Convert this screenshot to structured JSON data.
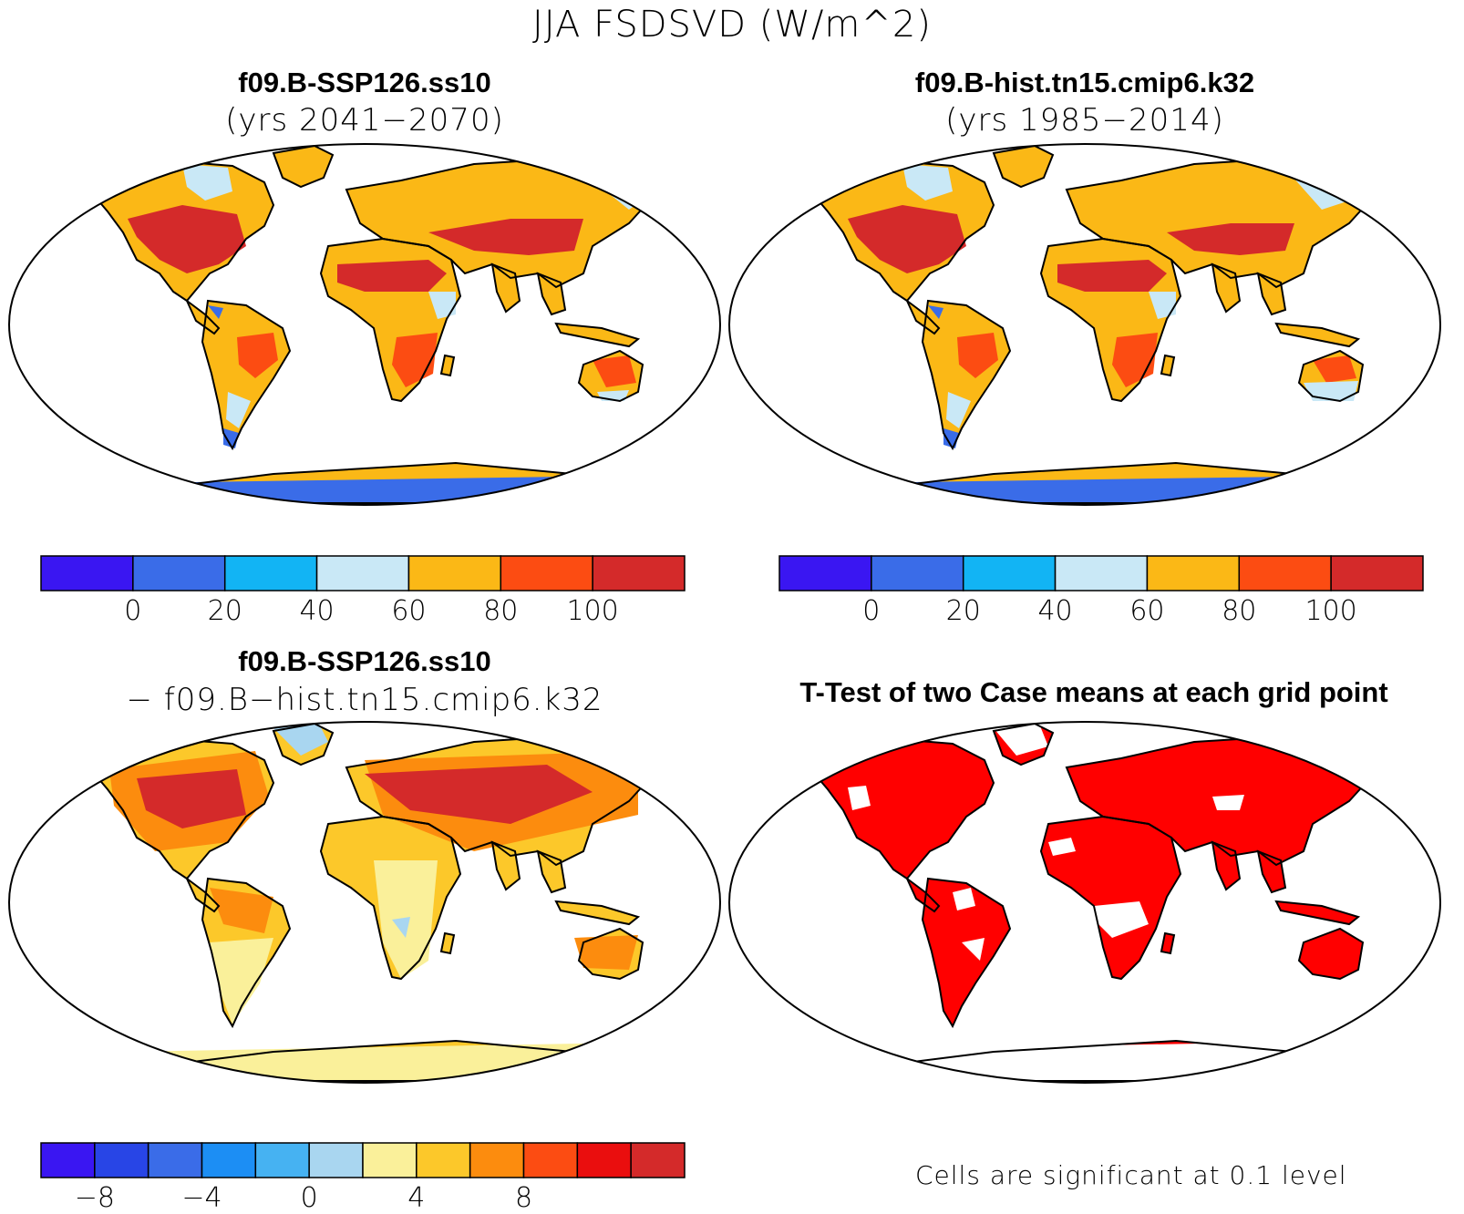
{
  "figure": {
    "title": "JJA FSDSVD (W/m^2)"
  },
  "panels": [
    {
      "id": "case",
      "title": "f09.B-SSP126.ss10",
      "subtitle": "(yrs 2041−2070)"
    },
    {
      "id": "control",
      "title": "f09.B-hist.tn15.cmip6.k32",
      "subtitle": "(yrs 1985−2014)"
    },
    {
      "id": "difference",
      "title": "f09.B-SSP126.ss10",
      "subtitle": "− f09.B−hist.tn15.cmip6.k32"
    },
    {
      "id": "ttest",
      "title": "T-Test of two Case means at each grid point",
      "footnote": "Cells are significant at 0.1 level"
    }
  ],
  "colorbars": {
    "absolute": {
      "colors": [
        "#3a16f2",
        "#3a6ce8",
        "#12b4f4",
        "#c9e8f6",
        "#fbb816",
        "#fc4c12",
        "#d42a2a"
      ],
      "labels": [
        "0",
        "20",
        "40",
        "60",
        "80",
        "100"
      ]
    },
    "difference": {
      "colors": [
        "#3a16f2",
        "#2845e6",
        "#3a6ce8",
        "#1c8ef4",
        "#46b2f2",
        "#a9d6f0",
        "#faf09a",
        "#fcc82a",
        "#fc8c0e",
        "#fc4c12",
        "#ea0e0e",
        "#d42a2a"
      ],
      "labels": [
        "−8",
        "−4",
        "0",
        "4",
        "8"
      ]
    }
  },
  "significance_color": "#ff0000"
}
